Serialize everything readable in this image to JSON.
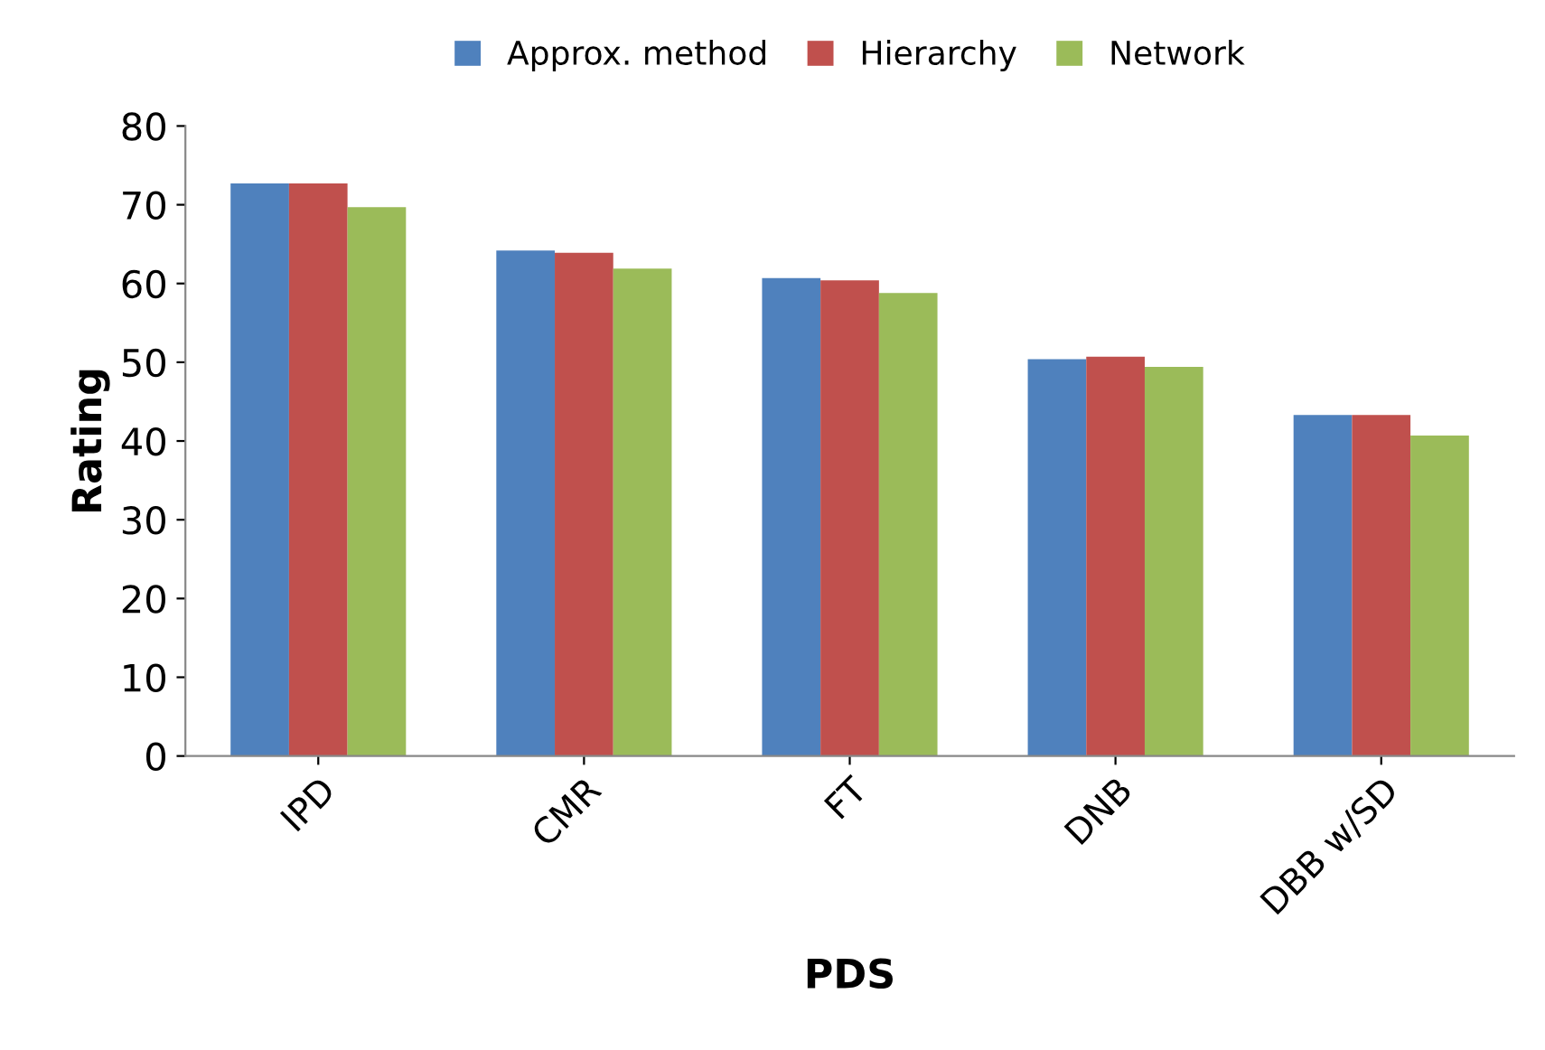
{
  "chart_data": {
    "type": "bar",
    "xlabel": "PDS",
    "ylabel": "Rating",
    "categories": [
      "IPD",
      "CMR",
      "FT",
      "DNB",
      "DBB w/SD"
    ],
    "series": [
      {
        "name": "Approx. method",
        "color": "#4f81bd",
        "values": [
          72.7,
          64.2,
          60.7,
          50.4,
          43.3
        ]
      },
      {
        "name": "Hierarchy",
        "color": "#c0504d",
        "values": [
          72.7,
          63.9,
          60.4,
          50.7,
          43.3
        ]
      },
      {
        "name": "Network",
        "color": "#9bbb59",
        "values": [
          69.7,
          61.9,
          58.8,
          49.4,
          40.7
        ]
      }
    ],
    "ylim": [
      0,
      80
    ],
    "yticks": [
      0,
      10,
      20,
      30,
      40,
      50,
      60,
      70,
      80
    ],
    "grid": false,
    "legend": "top"
  }
}
